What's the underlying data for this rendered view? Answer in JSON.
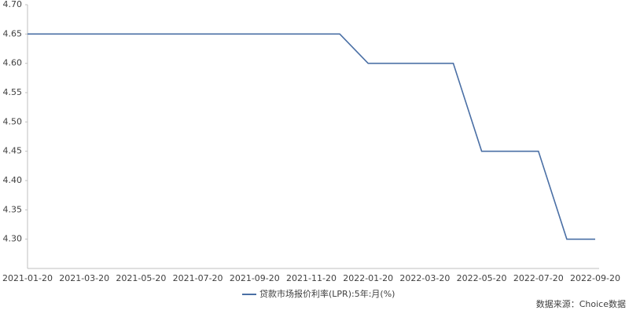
{
  "chart_data": {
    "type": "line",
    "categories": [
      "2021-01-20",
      null,
      "2021-03-20",
      null,
      "2021-05-20",
      null,
      "2021-07-20",
      null,
      "2021-09-20",
      null,
      "2021-11-20",
      null,
      "2022-01-20",
      null,
      "2022-03-20",
      null,
      "2022-05-20",
      null,
      "2022-07-20",
      null,
      "2022-09-20"
    ],
    "series": [
      {
        "name": "贷款市场报价利率(LPR):5年:月(%)",
        "color": "#4a6fa5",
        "values": [
          4.65,
          4.65,
          4.65,
          4.65,
          4.65,
          4.65,
          4.65,
          4.65,
          4.65,
          4.65,
          4.65,
          4.65,
          4.6,
          4.6,
          4.6,
          4.6,
          4.45,
          4.45,
          4.45,
          4.3,
          4.3
        ]
      }
    ],
    "ylim": [
      4.25,
      4.7
    ],
    "yticks": [
      {
        "value": 4.3,
        "label": "4.30"
      },
      4.35,
      {
        "value": 4.4,
        "label": "4.40"
      },
      4.45,
      {
        "value": 4.5,
        "label": "4.50"
      },
      4.55,
      {
        "value": 4.6,
        "label": "4.60"
      },
      4.65,
      {
        "value": 4.7,
        "label": "4.70"
      }
    ],
    "grid": false,
    "source": "数据来源：Choice数据"
  }
}
